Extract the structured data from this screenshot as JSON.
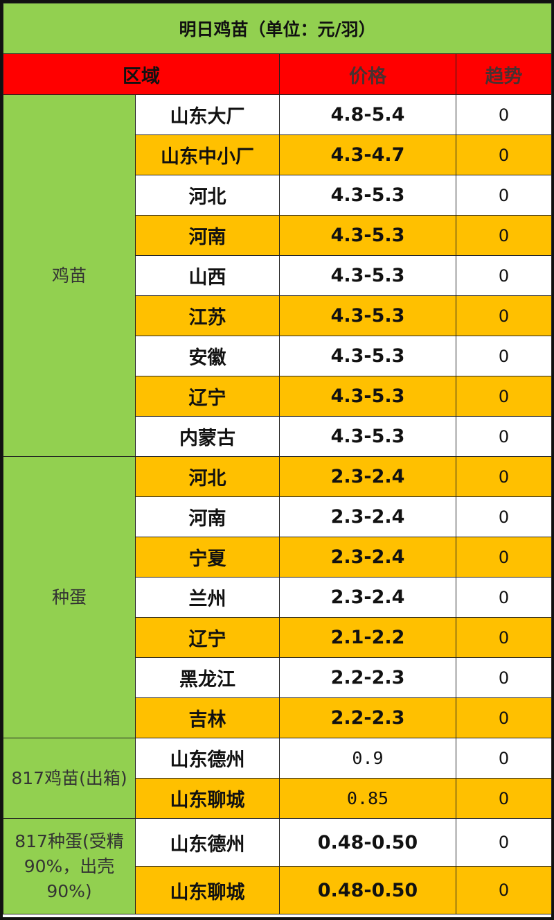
{
  "title": "明日鸡苗（单位：元/羽）",
  "headers": {
    "region": "区域",
    "price": "价格",
    "trend": "趋势"
  },
  "colors": {
    "title_bg": "#92d050",
    "header_bg": "#ff0000",
    "alt_row_bg": "#ffc000",
    "row_bg": "#ffffff"
  },
  "groups": [
    {
      "name": "鸡苗",
      "rows": [
        {
          "region": "山东大厂",
          "price": "4.8-5.4",
          "trend": "0"
        },
        {
          "region": "山东中小厂",
          "price": "4.3-4.7",
          "trend": "0"
        },
        {
          "region": "河北",
          "price": "4.3-5.3",
          "trend": "0"
        },
        {
          "region": "河南",
          "price": "4.3-5.3",
          "trend": "0"
        },
        {
          "region": "山西",
          "price": "4.3-5.3",
          "trend": "0"
        },
        {
          "region": "江苏",
          "price": "4.3-5.3",
          "trend": "0"
        },
        {
          "region": "安徽",
          "price": "4.3-5.3",
          "trend": "0"
        },
        {
          "region": "辽宁",
          "price": "4.3-5.3",
          "trend": "0"
        },
        {
          "region": "内蒙古",
          "price": "4.3-5.3",
          "trend": "0"
        }
      ]
    },
    {
      "name": "种蛋",
      "rows": [
        {
          "region": "河北",
          "price": "2.3-2.4",
          "trend": "0"
        },
        {
          "region": "河南",
          "price": "2.3-2.4",
          "trend": "0"
        },
        {
          "region": "宁夏",
          "price": "2.3-2.4",
          "trend": "0"
        },
        {
          "region": "兰州",
          "price": "2.3-2.4",
          "trend": "0"
        },
        {
          "region": "辽宁",
          "price": "2.1-2.2",
          "trend": "0"
        },
        {
          "region": "黑龙江",
          "price": "2.2-2.3",
          "trend": "0"
        },
        {
          "region": "吉林",
          "price": "2.2-2.3",
          "trend": "0"
        }
      ]
    },
    {
      "name": "817鸡苗(出箱)",
      "rows": [
        {
          "region": "山东德州",
          "price": "0.9",
          "trend": "0"
        },
        {
          "region": "山东聊城",
          "price": "0.85",
          "trend": "0"
        }
      ]
    },
    {
      "name": "817种蛋(受精90%，出壳90%)",
      "rows": [
        {
          "region": "山东德州",
          "price": "0.48-0.50",
          "trend": "0"
        },
        {
          "region": "山东聊城",
          "price": "0.48-0.50",
          "trend": "0"
        }
      ]
    }
  ]
}
